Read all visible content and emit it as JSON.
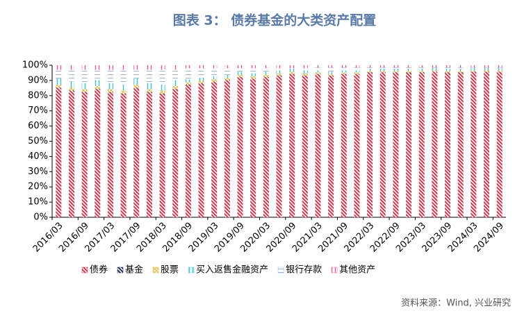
{
  "chart_data": {
    "type": "stacked_bar",
    "title": "图表 3：  债券基金的大类资产配置",
    "source": "资料来源：Wind, 兴业研究",
    "categories": [
      "2016/03",
      null,
      "2016/09",
      null,
      "2017/03",
      null,
      "2017/09",
      null,
      "2018/03",
      null,
      "2018/09",
      null,
      "2019/03",
      null,
      "2019/09",
      null,
      "2020/03",
      null,
      "2020/09",
      null,
      "2021/03",
      null,
      "2021/09",
      null,
      "2022/03",
      null,
      "2022/09",
      null,
      "2023/03",
      null,
      "2023/09",
      null,
      "2024/03",
      null,
      "2024/09"
    ],
    "ylim": [
      0,
      100
    ],
    "yticks": [
      {
        "value": 0,
        "label": "0%"
      },
      {
        "value": 10,
        "label": "10%"
      },
      {
        "value": 20,
        "label": "20%"
      },
      {
        "value": 30,
        "label": "30%"
      },
      {
        "value": 40,
        "label": "40%"
      },
      {
        "value": 50,
        "label": "50%"
      },
      {
        "value": 60,
        "label": "60%"
      },
      {
        "value": 70,
        "label": "70%"
      },
      {
        "value": 80,
        "label": "80%"
      },
      {
        "value": 90,
        "label": "90%"
      },
      {
        "value": 100,
        "label": "100%"
      }
    ],
    "series": [
      {
        "name": "债券",
        "color": "#d6334a",
        "pattern": "diag",
        "values": [
          85,
          83,
          82,
          84,
          82,
          81,
          85,
          82,
          81,
          84,
          87,
          88,
          89,
          90,
          92,
          91,
          92,
          93,
          94,
          93,
          94,
          93,
          94,
          94,
          95,
          95,
          95,
          95,
          95,
          95.5,
          95,
          95,
          95.5,
          95.5,
          95.5
        ]
      },
      {
        "name": "基金",
        "color": "#1f2f5c",
        "pattern": "diag",
        "values": [
          0.3,
          0.3,
          0.3,
          0.3,
          0.3,
          0.3,
          0.3,
          0.3,
          0.3,
          0.3,
          0.2,
          0.2,
          0.2,
          0.2,
          0.2,
          0.2,
          0.2,
          0.2,
          0.2,
          0.2,
          0.2,
          0.2,
          0.2,
          0.2,
          0.2,
          0.2,
          0.2,
          0.2,
          0.2,
          0.2,
          0.2,
          0.2,
          0.2,
          0.2,
          0.2
        ]
      },
      {
        "name": "股票",
        "color": "#e0b030",
        "pattern": "cross",
        "values": [
          2,
          2,
          2,
          2,
          2,
          2,
          2,
          2,
          2,
          2,
          1.5,
          1.5,
          1.5,
          1.5,
          1.5,
          1.5,
          1.5,
          1.5,
          1.5,
          1.5,
          1,
          1,
          1,
          1,
          1,
          1,
          1,
          1,
          1,
          1,
          1,
          1,
          1,
          1,
          1
        ]
      },
      {
        "name": "买入返售金融资产",
        "color": "#3cc6d0",
        "pattern": "vert",
        "values": [
          4,
          4,
          4,
          4,
          4,
          4,
          4,
          4,
          4,
          4,
          2,
          2,
          2,
          2,
          2,
          2,
          2,
          2,
          2,
          2,
          1.5,
          1.5,
          1.5,
          1.5,
          1.5,
          1.5,
          1.5,
          1.5,
          1.5,
          1.5,
          1.5,
          1.5,
          1.5,
          1.5,
          1.5
        ]
      },
      {
        "name": "银行存款",
        "color": "#9ab4d8",
        "pattern": "horiz",
        "values": [
          5.7,
          7.7,
          8.7,
          6.7,
          8.7,
          9.7,
          5.7,
          8.7,
          9.7,
          6.7,
          7.3,
          6.3,
          5.3,
          4.3,
          2.3,
          3.3,
          2.3,
          1.3,
          0.3,
          1.3,
          1.8,
          2.8,
          1.8,
          1.8,
          0.8,
          0.8,
          0.8,
          0.8,
          0.8,
          0.3,
          0.8,
          0.8,
          0.3,
          0.3,
          0.3
        ]
      },
      {
        "name": "其他资产",
        "color": "#e5609a",
        "pattern": "vert",
        "values": [
          3,
          3,
          3,
          3,
          3,
          3,
          3,
          3,
          3,
          3,
          2,
          2,
          2,
          2,
          2,
          2,
          2,
          2,
          2,
          2,
          1.5,
          1.5,
          1.5,
          1.5,
          1.5,
          1.5,
          1.5,
          1.5,
          1.5,
          1.5,
          1.5,
          1.5,
          1.5,
          1.5,
          1.5
        ]
      }
    ]
  }
}
